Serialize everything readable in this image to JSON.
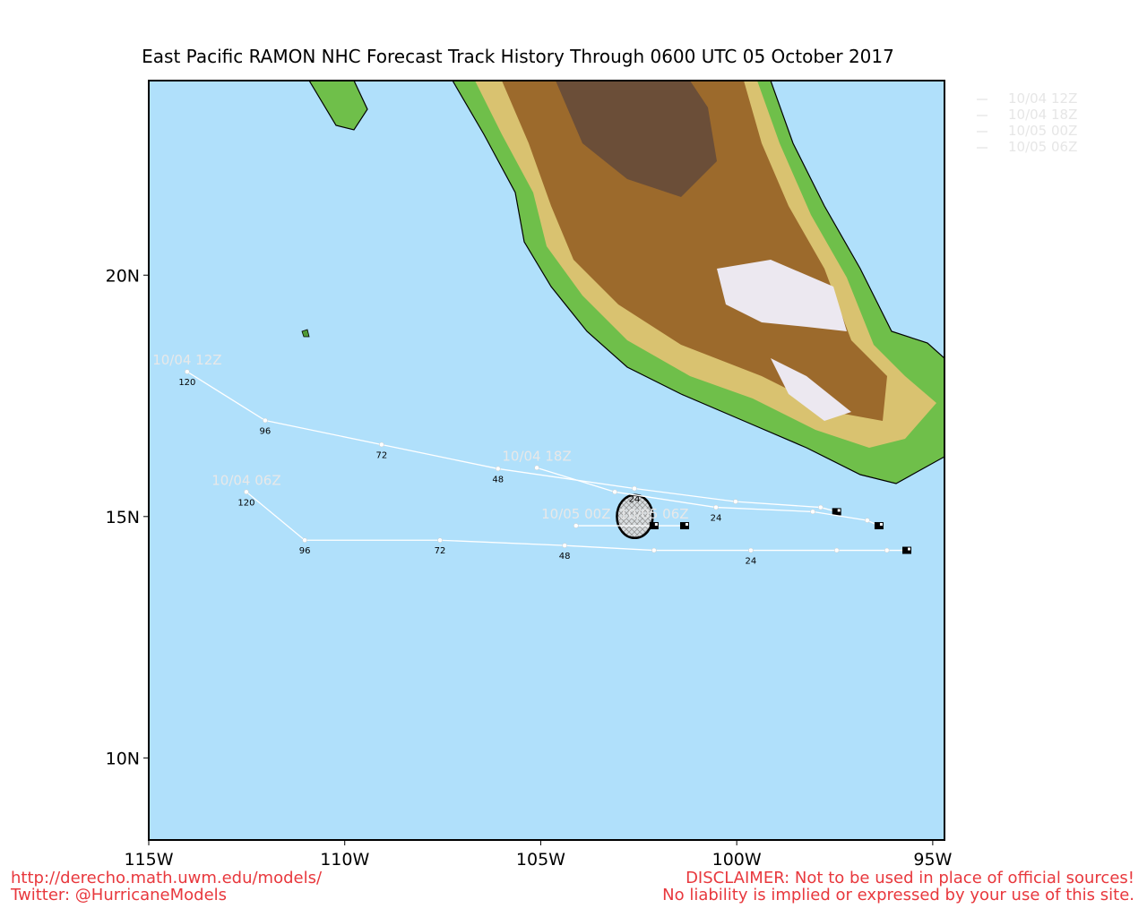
{
  "header": {
    "title": "East Pacific RAMON NHC Forecast Track History Through 0600 UTC 05 October 2017"
  },
  "map": {
    "xlim": [
      -115,
      -94.7
    ],
    "ylim": [
      8.3,
      24.03
    ],
    "xticks": [
      {
        "value": -115,
        "label": "115W"
      },
      {
        "value": -110,
        "label": "110W"
      },
      {
        "value": -105,
        "label": "105W"
      },
      {
        "value": -100,
        "label": "100W"
      },
      {
        "value": -95,
        "label": "95W"
      }
    ],
    "yticks": [
      {
        "value": 10,
        "label": "10N"
      },
      {
        "value": 15,
        "label": "15N"
      },
      {
        "value": 20,
        "label": "20N"
      }
    ],
    "storm": {
      "lon": -102.6,
      "lat": 15.0
    },
    "tracks": [
      {
        "name": "10/04 06Z",
        "lon": [
          -95.66,
          -96.17,
          -97.45,
          -99.64,
          -102.11,
          -104.39,
          -107.57,
          -111.02,
          -112.51
        ],
        "lat": [
          14.3,
          14.3,
          14.3,
          14.3,
          14.3,
          14.4,
          14.51,
          14.51,
          15.51
        ],
        "hour_labels": [
          null,
          null,
          null,
          "24",
          null,
          "48",
          "72",
          "96",
          "120"
        ]
      },
      {
        "name": "10/04 12Z",
        "lon": [
          -97.45,
          -97.86,
          -100.03,
          -102.61,
          -106.09,
          -109.06,
          -112.03,
          -114.02
        ],
        "lat": [
          15.1,
          15.19,
          15.31,
          15.58,
          15.99,
          16.49,
          16.99,
          18.0
        ],
        "hour_labels": [
          null,
          null,
          null,
          "24",
          "48",
          "72",
          "96",
          "120"
        ]
      },
      {
        "name": "10/04 18Z",
        "lon": [
          -96.37,
          -96.67,
          -98.06,
          -100.53,
          -103.11,
          -105.1
        ],
        "lat": [
          14.81,
          14.92,
          15.1,
          15.19,
          15.51,
          16.01
        ],
        "hour_labels": [
          null,
          null,
          null,
          "24",
          null,
          null
        ]
      },
      {
        "name": "10/05 00Z",
        "lon": [
          -101.33,
          -104.1
        ],
        "lat": [
          14.81,
          14.81
        ],
        "hour_labels": [
          null,
          null
        ]
      },
      {
        "name": "10/05 06Z",
        "lon": [
          -102.11
        ],
        "lat": [
          14.81
        ],
        "hour_labels": [
          null
        ]
      }
    ],
    "legend": [
      "10/04 12Z",
      "10/04 18Z",
      "10/05 00Z",
      "10/05 06Z"
    ]
  },
  "footer": {
    "left": [
      "http://derecho.math.uwm.edu/models/",
      "Twitter: @HurricaneModels"
    ],
    "right": [
      "DISCLAIMER: Not to be used in place of official sources!",
      "No liability is implied or expressed by your use of this site."
    ]
  }
}
